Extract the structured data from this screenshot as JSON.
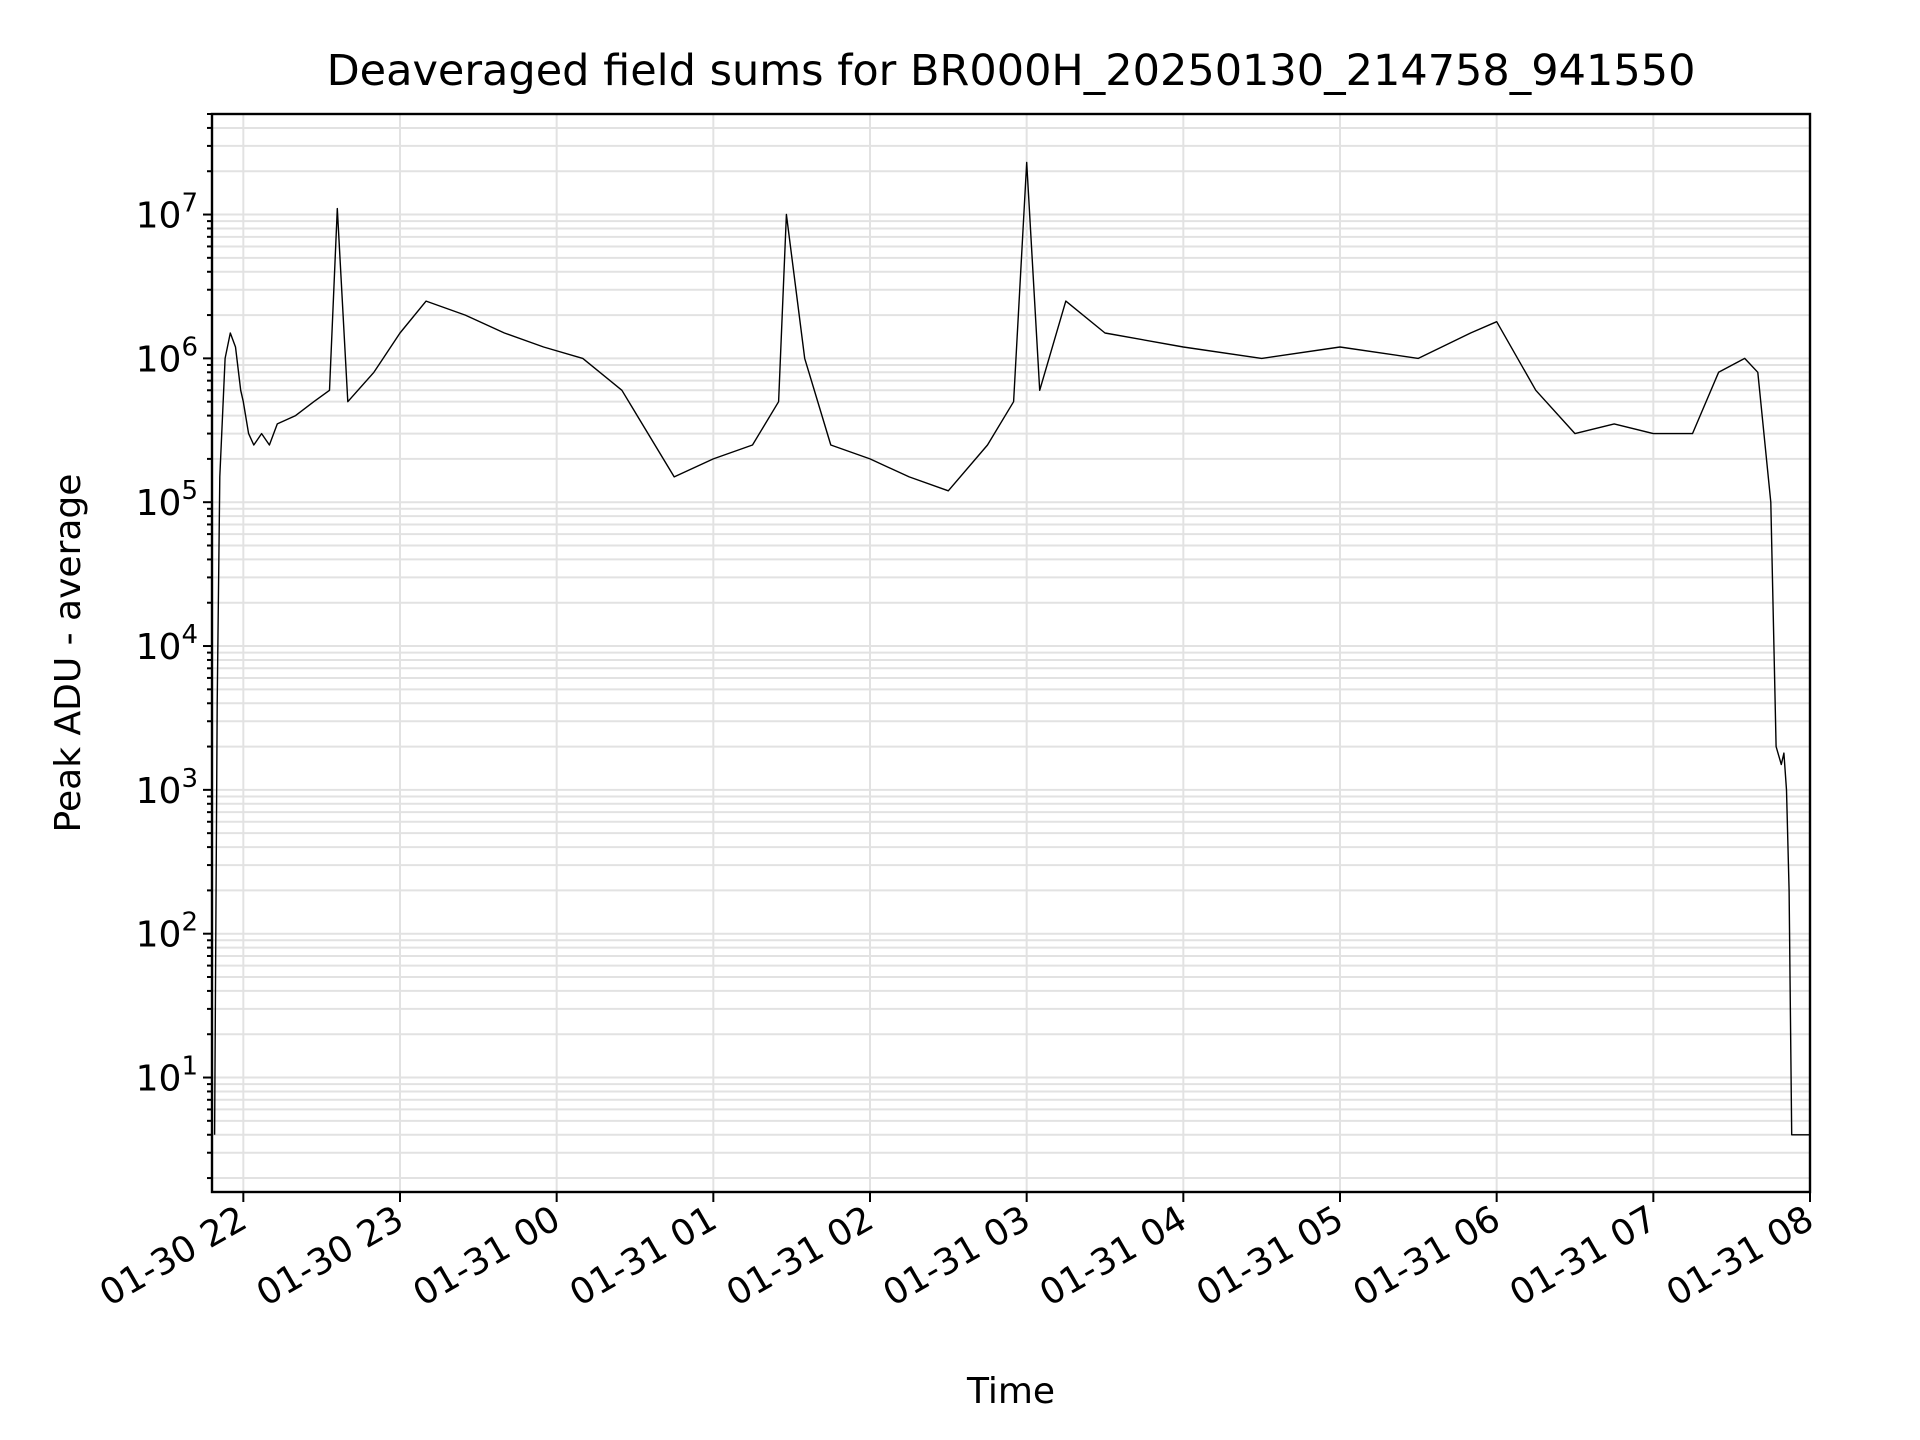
{
  "chart_data": {
    "type": "line",
    "title": "Deaveraged field sums for BR000H_20250130_214758_941550",
    "xlabel": "Time",
    "ylabel": "Peak ADU - average",
    "y_scale": "log",
    "ylim": [
      1.6,
      50000000
    ],
    "xlim": [
      "2025-01-30 21:48",
      "2025-01-31 08:00"
    ],
    "grid": true,
    "line_color": "#000000",
    "x_ticks": [
      "01-30 22",
      "01-30 23",
      "01-31 00",
      "01-31 01",
      "01-31 02",
      "01-31 03",
      "01-31 04",
      "01-31 05",
      "01-31 06",
      "01-31 07",
      "01-31 08"
    ],
    "y_ticks": [
      {
        "value": 10,
        "base": "10",
        "exp": "1"
      },
      {
        "value": 100,
        "base": "10",
        "exp": "2"
      },
      {
        "value": 1000,
        "base": "10",
        "exp": "3"
      },
      {
        "value": 10000,
        "base": "10",
        "exp": "4"
      },
      {
        "value": 100000,
        "base": "10",
        "exp": "5"
      },
      {
        "value": 1000000,
        "base": "10",
        "exp": "6"
      },
      {
        "value": 10000000,
        "base": "10",
        "exp": "7"
      }
    ],
    "series": [
      {
        "x": [
          "2025-01-30 21:49",
          "2025-01-30 21:50",
          "2025-01-30 21:51",
          "2025-01-30 21:53",
          "2025-01-30 21:55",
          "2025-01-30 21:57",
          "2025-01-30 21:59",
          "2025-01-30 22:00",
          "2025-01-30 22:02",
          "2025-01-30 22:04",
          "2025-01-30 22:07",
          "2025-01-30 22:10",
          "2025-01-30 22:13",
          "2025-01-30 22:20",
          "2025-01-30 22:27",
          "2025-01-30 22:33",
          "2025-01-30 22:36",
          "2025-01-30 22:40",
          "2025-01-30 22:50",
          "2025-01-30 23:00",
          "2025-01-30 23:10",
          "2025-01-30 23:25",
          "2025-01-30 23:40",
          "2025-01-30 23:55",
          "2025-01-31 00:10",
          "2025-01-31 00:25",
          "2025-01-31 00:45",
          "2025-01-31 01:00",
          "2025-01-31 01:15",
          "2025-01-31 01:25",
          "2025-01-31 01:28",
          "2025-01-31 01:35",
          "2025-01-31 01:45",
          "2025-01-31 02:00",
          "2025-01-31 02:15",
          "2025-01-31 02:30",
          "2025-01-31 02:45",
          "2025-01-31 02:55",
          "2025-01-31 03:00",
          "2025-01-31 03:05",
          "2025-01-31 03:15",
          "2025-01-31 03:30",
          "2025-01-31 04:00",
          "2025-01-31 04:30",
          "2025-01-31 05:00",
          "2025-01-31 05:30",
          "2025-01-31 05:50",
          "2025-01-31 06:00",
          "2025-01-31 06:15",
          "2025-01-31 06:30",
          "2025-01-31 06:45",
          "2025-01-31 07:00",
          "2025-01-31 07:15",
          "2025-01-31 07:25",
          "2025-01-31 07:35",
          "2025-01-31 07:40",
          "2025-01-31 07:45",
          "2025-01-31 07:47",
          "2025-01-31 07:49",
          "2025-01-31 07:50",
          "2025-01-31 07:51",
          "2025-01-31 07:52",
          "2025-01-31 07:53",
          "2025-01-31 07:55",
          "2025-01-31 07:56",
          "2025-01-31 08:00"
        ],
        "y": [
          4,
          4000,
          150000,
          1000000,
          1500000,
          1200000,
          600000,
          500000,
          300000,
          250000,
          300000,
          250000,
          350000,
          400000,
          500000,
          600000,
          11000000,
          500000,
          800000,
          1500000,
          2500000,
          2000000,
          1500000,
          1200000,
          1000000,
          600000,
          150000,
          200000,
          250000,
          500000,
          10000000,
          1000000,
          250000,
          200000,
          150000,
          120000,
          250000,
          500000,
          23000000,
          600000,
          2500000,
          1500000,
          1200000,
          1000000,
          1200000,
          1000000,
          1500000,
          1800000,
          600000,
          300000,
          350000,
          300000,
          300000,
          800000,
          1000000,
          800000,
          100000,
          2000,
          1500,
          1800,
          1000,
          200,
          4,
          4,
          4,
          4
        ]
      }
    ]
  }
}
